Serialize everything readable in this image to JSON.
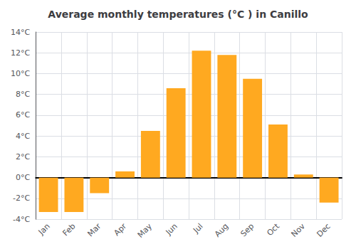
{
  "chart_data": {
    "type": "bar",
    "title": "Average monthly temperatures (°C ) in Canillo",
    "categories": [
      "Jan",
      "Feb",
      "Mar",
      "Apr",
      "May",
      "Jun",
      "Jul",
      "Aug",
      "Sep",
      "Oct",
      "Nov",
      "Dec"
    ],
    "values": [
      -3.3,
      -3.3,
      -1.5,
      0.6,
      4.5,
      8.6,
      12.2,
      11.8,
      9.5,
      5.1,
      0.3,
      -2.4
    ],
    "color": "#FFA920",
    "ylim": [
      -4,
      14
    ],
    "yticks": [
      {
        "value": -4,
        "label": "-4°C"
      },
      {
        "value": -2,
        "label": "-2°C"
      },
      {
        "value": 0,
        "label": "0°C"
      },
      {
        "value": 2,
        "label": "2°C"
      },
      {
        "value": 4,
        "label": "4°C"
      },
      {
        "value": 6,
        "label": "6°C"
      },
      {
        "value": 8,
        "label": "8°C"
      },
      {
        "value": 10,
        "label": "10°C"
      },
      {
        "value": 12,
        "label": "12°C"
      },
      {
        "value": 14,
        "label": "14°C"
      }
    ],
    "grid": true
  }
}
